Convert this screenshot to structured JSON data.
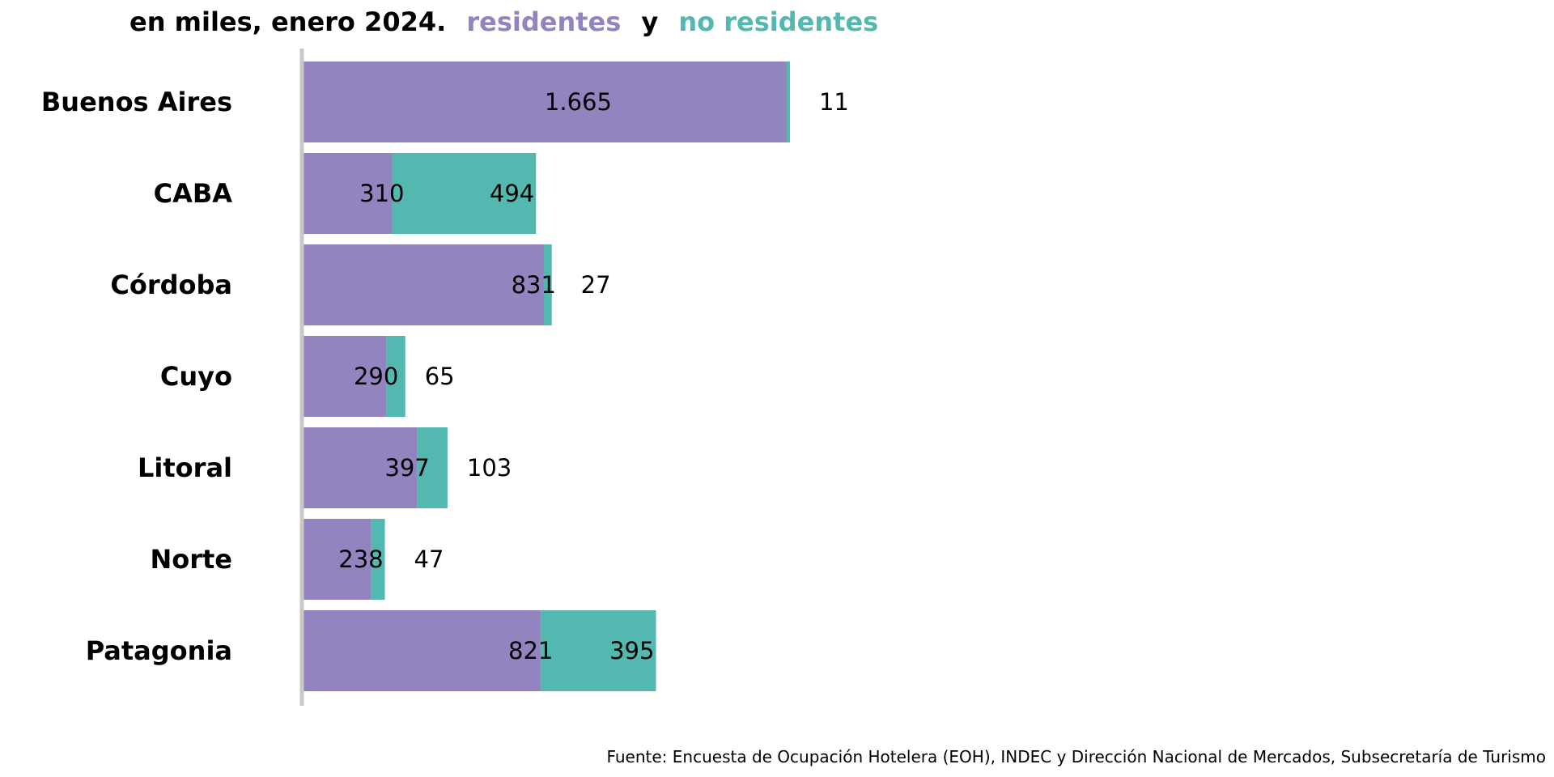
{
  "title": {
    "prefix": "en miles, enero 2024.",
    "series_a": "residentes",
    "connector": "y",
    "series_b": "no residentes"
  },
  "source": "Fuente: Encuesta de Ocupación Hotelera (EOH), INDEC y Dirección Nacional de Mercados, Subsecretaría de Turismo",
  "colors": {
    "residentes": "#9384bf",
    "no_residentes": "#52b8b0",
    "axis": "#c8c8c8",
    "text": "#000000"
  },
  "chart_data": {
    "type": "bar",
    "orientation": "horizontal",
    "stacked": true,
    "title": "en miles, enero 2024. residentes y no residentes",
    "categories": [
      "Buenos Aires",
      "CABA",
      "Córdoba",
      "Cuyo",
      "Litoral",
      "Norte",
      "Patagonia"
    ],
    "series": [
      {
        "name": "residentes",
        "values": [
          1665,
          310,
          831,
          290,
          397,
          238,
          821
        ],
        "labels": [
          "1.665",
          "310",
          "831",
          "290",
          "397",
          "238",
          "821"
        ]
      },
      {
        "name": "no residentes",
        "values": [
          11,
          494,
          27,
          65,
          103,
          47,
          395
        ],
        "labels": [
          "11",
          "494",
          "27",
          "65",
          "103",
          "47",
          "395"
        ]
      }
    ],
    "xlim": [
      0,
      4300
    ],
    "grid": false,
    "legend": "in title"
  }
}
